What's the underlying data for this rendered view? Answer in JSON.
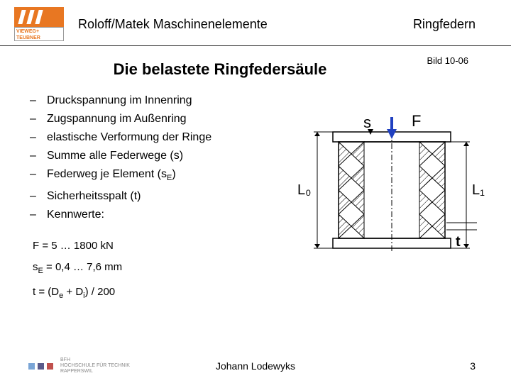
{
  "header": {
    "publisher_line1": "VIEWEG+",
    "publisher_line2": "TEUBNER",
    "title": "Roloff/Matek Maschinenelemente",
    "topic": "Ringfedern"
  },
  "figure_label": "Bild 10-06",
  "slide_title": "Die belastete Ringfedersäule",
  "bullets": [
    {
      "text": "Druckspannung im Innenring"
    },
    {
      "text": "Zugspannung im Außenring"
    },
    {
      "text": "elastische Verformung der Ringe"
    },
    {
      "text": "Summe alle Federwege (s)"
    },
    {
      "text_pre": "Federweg je Element (s",
      "sub": "E",
      "text_post": ")"
    },
    {
      "text": "Sicherheitsspalt (t)"
    },
    {
      "text": "Kennwerte:"
    }
  ],
  "formulas": {
    "f_range": "F = 5 … 1800 kN",
    "se_pre": "s",
    "se_sub": "E",
    "se_post": " = 0,4 … 7,6 mm",
    "t_pre": "t = (D",
    "t_sub1": "e",
    "t_mid": " + D",
    "t_sub2": "i",
    "t_post": ") / 200"
  },
  "diagram": {
    "labels": {
      "s": "s",
      "F": "F",
      "L0": "L₀",
      "L1": "L₁",
      "t": "t"
    },
    "colors": {
      "stroke": "#000000",
      "hatch": "#000000",
      "arrow_fill": "#2040c0",
      "bg": "#ffffff"
    },
    "geometry": {
      "n_rings": 4,
      "outer_w": 150,
      "ring_h": 34,
      "wall": 18
    }
  },
  "footer": {
    "logo_colors": [
      "#7aa5d6",
      "#5a5a8a",
      "#c0504d"
    ],
    "inst_line1": "BFH",
    "inst_line2": "HOCHSCHULE FÜR TECHNIK",
    "inst_line3": "RAPPERSWIL",
    "author": "Johann Lodewyks",
    "page": "3"
  }
}
